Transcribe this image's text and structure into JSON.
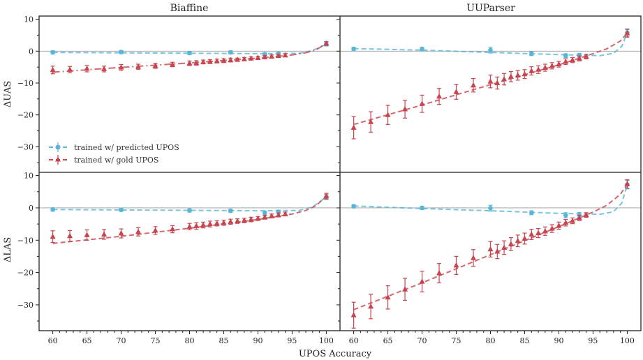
{
  "figure": {
    "xlabel": "UPOS Accuracy",
    "col_titles": [
      "Biaffine",
      "UUParser"
    ],
    "row_labels": [
      "ΔUAS",
      "ΔLAS"
    ],
    "legend": [
      "trained w/ predicted UPOS",
      "trained w/ gold UPOS"
    ],
    "colors": {
      "predicted": "#5bb5d6",
      "gold": "#c8444e"
    },
    "xticks": [
      60,
      65,
      70,
      75,
      80,
      85,
      90,
      95,
      100
    ],
    "yticks": [
      10,
      0,
      -10,
      -20,
      -30
    ]
  },
  "chart_data": [
    {
      "type": "scatter",
      "title": "Biaffine",
      "ylabel": "ΔUAS",
      "xlim": [
        58,
        102
      ],
      "ylim": [
        -38,
        11
      ],
      "series": [
        {
          "name": "trained w/ predicted UPOS",
          "marker": "circle",
          "x": [
            60,
            70,
            80,
            86,
            91,
            93,
            100
          ],
          "y": [
            -0.4,
            -0.3,
            -0.6,
            -0.4,
            -1.0,
            -0.8,
            2.2
          ],
          "err": [
            0.5,
            0.5,
            0.5,
            0.5,
            0.5,
            0.5,
            0.6
          ],
          "trend": [
            [
              60,
              -0.4
            ],
            [
              90,
              -0.8
            ],
            [
              96,
              -0.7
            ],
            [
              98,
              0.2
            ],
            [
              100,
              2.2
            ]
          ]
        },
        {
          "name": "trained w/ gold UPOS",
          "marker": "triangle",
          "x": [
            60,
            62.5,
            65,
            67.5,
            70,
            72.5,
            75,
            77.5,
            80,
            81,
            82,
            83,
            84,
            85,
            86,
            87,
            88,
            89,
            90,
            91,
            92,
            93,
            94,
            100
          ],
          "y": [
            -5.9,
            -5.8,
            -5.5,
            -5.6,
            -5.1,
            -4.9,
            -4.6,
            -4.2,
            -3.8,
            -3.7,
            -3.4,
            -3.3,
            -3.1,
            -3.0,
            -2.8,
            -2.7,
            -2.5,
            -2.3,
            -2.1,
            -1.9,
            -1.7,
            -1.5,
            -1.3,
            2.4
          ],
          "err": [
            1.2,
            1.0,
            1.0,
            0.9,
            0.9,
            0.8,
            0.8,
            0.7,
            0.7,
            0.7,
            0.6,
            0.6,
            0.6,
            0.6,
            0.6,
            0.5,
            0.5,
            0.5,
            0.5,
            0.5,
            0.5,
            0.5,
            0.5,
            0.6
          ],
          "trend": [
            [
              60,
              -6.6
            ],
            [
              70,
              -5.1
            ],
            [
              80,
              -3.7
            ],
            [
              90,
              -2.2
            ],
            [
              95,
              -1.2
            ],
            [
              97,
              -0.5
            ],
            [
              98.5,
              0.4
            ],
            [
              100,
              2.4
            ]
          ]
        }
      ]
    },
    {
      "type": "scatter",
      "title": "UUParser",
      "ylabel": "ΔUAS",
      "xlim": [
        58,
        102
      ],
      "ylim": [
        -38,
        11
      ],
      "series": [
        {
          "name": "trained w/ predicted UPOS",
          "marker": "circle",
          "x": [
            60,
            70,
            80,
            86,
            91,
            93,
            100
          ],
          "y": [
            0.7,
            0.7,
            0.3,
            -0.8,
            -1.4,
            -1.3,
            5.8
          ],
          "err": [
            0.5,
            0.5,
            0.9,
            0.6,
            0.6,
            0.6,
            1.2
          ],
          "trend": [
            [
              60,
              0.8
            ],
            [
              70,
              0.3
            ],
            [
              80,
              -0.4
            ],
            [
              90,
              -1.1
            ],
            [
              96,
              -1.4
            ],
            [
              98,
              -0.7
            ],
            [
              99.2,
              1.5
            ],
            [
              100,
              5.8
            ]
          ]
        },
        {
          "name": "trained w/ gold UPOS",
          "marker": "triangle",
          "x": [
            60,
            62.5,
            65,
            67.5,
            70,
            72.5,
            75,
            77.5,
            80,
            81,
            82,
            83,
            84,
            85,
            86,
            87,
            88,
            89,
            90,
            91,
            92,
            93,
            94,
            100
          ],
          "y": [
            -24.0,
            -22.2,
            -20.0,
            -18.2,
            -16.5,
            -14.2,
            -12.8,
            -10.7,
            -9.5,
            -10.0,
            -8.8,
            -8.0,
            -7.6,
            -7.2,
            -6.2,
            -5.8,
            -5.2,
            -4.6,
            -4.1,
            -3.3,
            -2.8,
            -2.3,
            -1.7,
            5.6
          ],
          "err": [
            3.5,
            3.2,
            3.0,
            2.8,
            2.7,
            2.5,
            2.3,
            2.1,
            2.0,
            1.9,
            1.8,
            1.6,
            1.5,
            1.4,
            1.3,
            1.2,
            1.1,
            1.0,
            0.9,
            0.9,
            0.8,
            0.8,
            0.7,
            1.2
          ],
          "trend": [
            [
              60,
              -23.0
            ],
            [
              70,
              -16.9
            ],
            [
              80,
              -10.5
            ],
            [
              90,
              -4.3
            ],
            [
              95,
              -0.8
            ],
            [
              97,
              0.7
            ],
            [
              99,
              3.2
            ],
            [
              100,
              5.6
            ]
          ]
        }
      ]
    },
    {
      "type": "scatter",
      "title": "",
      "ylabel": "ΔLAS",
      "xlim": [
        58,
        102
      ],
      "ylim": [
        -38,
        11
      ],
      "series": [
        {
          "name": "trained w/ predicted UPOS",
          "marker": "circle",
          "x": [
            60,
            70,
            80,
            86,
            91,
            93,
            100
          ],
          "y": [
            -0.5,
            -0.6,
            -0.8,
            -0.9,
            -1.5,
            -1.2,
            3.4
          ],
          "err": [
            0.5,
            0.5,
            0.5,
            0.5,
            0.5,
            0.5,
            0.8
          ],
          "trend": [
            [
              60,
              -0.5
            ],
            [
              90,
              -0.9
            ],
            [
              96,
              -0.8
            ],
            [
              98,
              0.3
            ],
            [
              100,
              3.4
            ]
          ]
        },
        {
          "name": "trained w/ gold UPOS",
          "marker": "triangle",
          "x": [
            60,
            62.5,
            65,
            67.5,
            70,
            72.5,
            75,
            77.5,
            80,
            81,
            82,
            83,
            84,
            85,
            86,
            87,
            88,
            89,
            90,
            91,
            92,
            93,
            94,
            100
          ],
          "y": [
            -8.9,
            -8.7,
            -8.4,
            -8.2,
            -7.9,
            -7.4,
            -7.0,
            -6.6,
            -5.8,
            -5.6,
            -5.3,
            -5.0,
            -4.8,
            -4.6,
            -4.3,
            -4.1,
            -3.9,
            -3.6,
            -3.3,
            -2.9,
            -2.5,
            -2.2,
            -1.9,
            3.6
          ],
          "err": [
            1.8,
            1.7,
            1.6,
            1.5,
            1.4,
            1.3,
            1.2,
            1.1,
            1.0,
            1.0,
            0.9,
            0.9,
            0.8,
            0.8,
            0.8,
            0.7,
            0.7,
            0.7,
            0.6,
            0.6,
            0.6,
            0.6,
            0.6,
            0.9
          ],
          "trend": [
            [
              60,
              -11.0
            ],
            [
              70,
              -8.8
            ],
            [
              80,
              -6.3
            ],
            [
              90,
              -3.6
            ],
            [
              95,
              -1.9
            ],
            [
              97,
              -0.8
            ],
            [
              98.5,
              0.7
            ],
            [
              100,
              3.6
            ]
          ]
        }
      ]
    },
    {
      "type": "scatter",
      "title": "",
      "ylabel": "ΔLAS",
      "xlim": [
        58,
        102
      ],
      "ylim": [
        -38,
        11
      ],
      "series": [
        {
          "name": "trained w/ predicted UPOS",
          "marker": "circle",
          "x": [
            60,
            70,
            80,
            86,
            91,
            93,
            100
          ],
          "y": [
            0.5,
            0.0,
            -0.1,
            -1.5,
            -2.3,
            -2.2,
            7.2
          ],
          "err": [
            0.5,
            0.5,
            0.9,
            0.6,
            0.8,
            0.8,
            1.3
          ],
          "trend": [
            [
              60,
              0.6
            ],
            [
              70,
              -0.2
            ],
            [
              80,
              -0.9
            ],
            [
              90,
              -1.7
            ],
            [
              96,
              -2.0
            ],
            [
              98,
              -1.2
            ],
            [
              99.2,
              1.5
            ],
            [
              100,
              7.2
            ]
          ]
        },
        {
          "name": "trained w/ gold UPOS",
          "marker": "triangle",
          "x": [
            60,
            62.5,
            65,
            67.5,
            70,
            72.5,
            75,
            77.5,
            80,
            81,
            82,
            83,
            84,
            85,
            86,
            87,
            88,
            89,
            90,
            91,
            92,
            93,
            94,
            100
          ],
          "y": [
            -33.2,
            -30.5,
            -27.7,
            -25.2,
            -22.8,
            -20.2,
            -17.8,
            -15.5,
            -12.8,
            -13.5,
            -12.3,
            -11.2,
            -10.2,
            -9.5,
            -8.2,
            -7.8,
            -7.2,
            -6.4,
            -5.5,
            -4.6,
            -4.0,
            -3.1,
            -2.2,
            7.4
          ],
          "err": [
            4.0,
            3.8,
            3.6,
            3.4,
            3.2,
            3.0,
            2.8,
            2.6,
            2.4,
            2.2,
            2.1,
            2.0,
            1.8,
            1.7,
            1.6,
            1.4,
            1.3,
            1.2,
            1.1,
            1.0,
            0.9,
            0.8,
            0.7,
            1.3
          ],
          "trend": [
            [
              60,
              -31.5
            ],
            [
              70,
              -23.2
            ],
            [
              80,
              -14.5
            ],
            [
              90,
              -5.8
            ],
            [
              95,
              -1.3
            ],
            [
              97,
              0.8
            ],
            [
              99,
              4.2
            ],
            [
              100,
              7.4
            ]
          ]
        }
      ]
    }
  ]
}
